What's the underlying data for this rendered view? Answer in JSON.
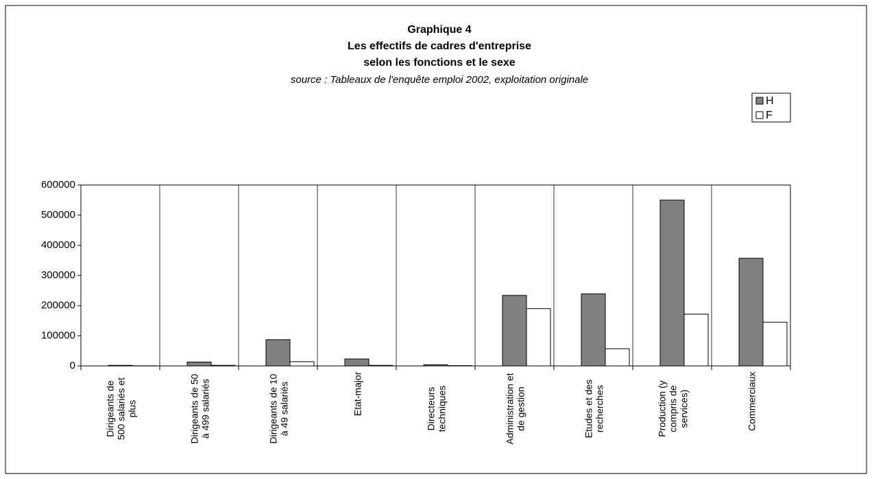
{
  "chart_data": {
    "type": "bar",
    "title": "Graphique 4",
    "subtitle_lines": [
      "Les effectifs de cadres d'entreprise",
      "selon les fonctions et le sexe"
    ],
    "source": "source : Tableaux de l'enquête emploi 2002, exploitation originale",
    "categories": [
      "Dirigeants de 500 salariés et plus",
      "Dirigeants de 50 à 499 salariés",
      "Dirigeants de 10 à 49 salariés",
      "Etat-major",
      "Directeurs techniques",
      "Administration et de gestion",
      "Etudes et des recherches",
      "Production (y compris de services)",
      "Commerciaux"
    ],
    "series": [
      {
        "name": "H",
        "color": "#808080",
        "values": [
          2000,
          13000,
          87000,
          23000,
          4000,
          234000,
          239000,
          550000,
          357000
        ]
      },
      {
        "name": "F",
        "color": "#ffffff",
        "values": [
          500,
          2000,
          14000,
          2000,
          1000,
          190000,
          57000,
          172000,
          145000
        ]
      }
    ],
    "ylim": [
      0,
      600000
    ],
    "yticks": [
      0,
      100000,
      200000,
      300000,
      400000,
      500000,
      600000
    ],
    "grid": true,
    "legend": "top-right"
  }
}
